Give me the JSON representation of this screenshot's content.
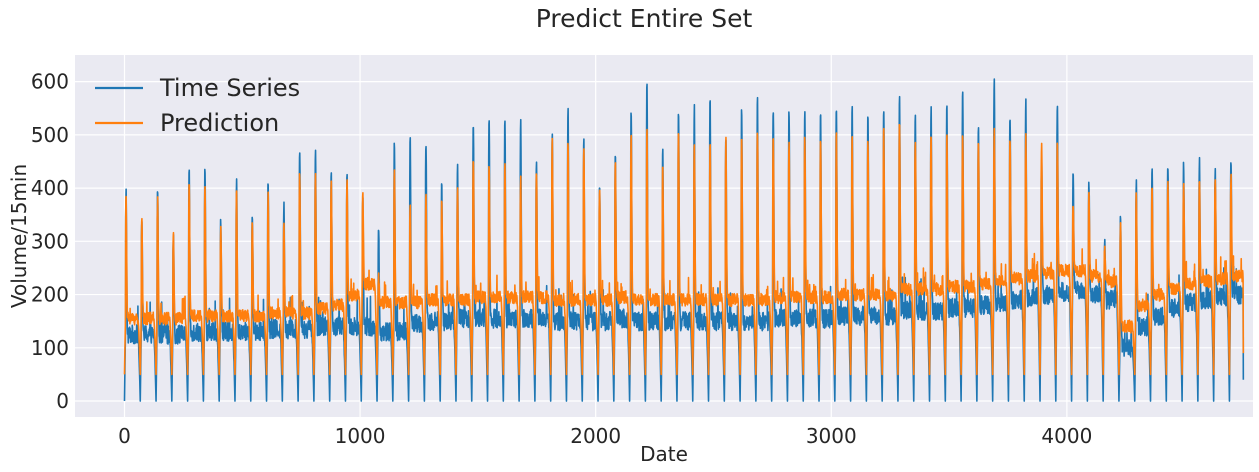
{
  "chart_data": {
    "type": "line",
    "title": "Predict Entire Set",
    "xlabel": "Date",
    "ylabel": "Volume/15min",
    "xlim": [
      -210,
      4790
    ],
    "ylim": [
      -30,
      650
    ],
    "xticks": [
      0,
      1000,
      2000,
      3000,
      4000
    ],
    "yticks": [
      0,
      100,
      200,
      300,
      400,
      500,
      600
    ],
    "grid": true,
    "legend_position": "top-left",
    "n_points": 4750,
    "cycle_length": 67,
    "colors": {
      "background": "#eaeaf2",
      "grid": "#ffffff",
      "text": "#262626"
    },
    "series": [
      {
        "name": "Time Series",
        "color": "#1f77b4",
        "peaks": [
          405,
          350,
          410,
          322,
          445,
          445,
          345,
          428,
          362,
          430,
          375,
          495,
          492,
          445,
          440,
          380,
          335,
          500,
          504,
          505,
          415,
          450,
          545,
          550,
          540,
          540,
          460,
          520,
          572,
          500,
          420,
          480,
          558,
          612,
          480,
          560,
          565,
          580,
          510,
          565,
          578,
          570,
          565,
          570,
          550,
          572,
          565,
          555,
          570,
          598,
          565,
          560,
          565,
          600,
          520,
          620,
          555,
          578,
          465,
          575,
          430,
          415,
          310,
          360,
          425,
          450,
          455,
          455,
          460,
          448,
          462,
          540,
          550,
          520,
          540,
          475,
          462
        ],
        "baselines": [
          125,
          125,
          125,
          125,
          130,
          130,
          130,
          130,
          130,
          135,
          135,
          135,
          140,
          140,
          140,
          140,
          130,
          130,
          145,
          150,
          150,
          155,
          155,
          155,
          155,
          155,
          155,
          150,
          150,
          150,
          150,
          155,
          150,
          150,
          150,
          150,
          150,
          150,
          150,
          150,
          150,
          155,
          155,
          155,
          155,
          160,
          160,
          160,
          160,
          170,
          170,
          170,
          175,
          175,
          180,
          185,
          190,
          195,
          200,
          205,
          210,
          200,
          190,
          100,
          140,
          160,
          175,
          185,
          190,
          195,
          200,
          205,
          210,
          215,
          220,
          225,
          225
        ],
        "troughs": [
          0,
          0,
          0,
          0,
          0,
          0,
          0,
          0,
          0,
          0,
          0,
          0,
          0,
          0,
          0,
          0,
          0,
          0,
          0,
          0,
          0,
          0,
          0,
          0,
          0,
          0,
          0,
          0,
          0,
          0,
          0,
          0,
          0,
          0,
          0,
          0,
          0,
          0,
          0,
          0,
          0,
          0,
          0,
          0,
          0,
          0,
          0,
          0,
          0,
          0,
          0,
          0,
          0,
          0,
          0,
          0,
          0,
          0,
          0,
          0,
          0,
          0,
          0,
          0,
          0,
          0,
          0,
          0,
          0,
          0,
          0,
          0,
          0,
          0,
          0,
          0,
          0
        ],
        "noise": 18,
        "end_value": 40
      },
      {
        "name": "Prediction",
        "color": "#ff7f0e",
        "peaks": [
          392,
          345,
          388,
          320,
          420,
          410,
          330,
          400,
          340,
          395,
          345,
          440,
          440,
          425,
          420,
          400,
          240,
          445,
          380,
          390,
          380,
          405,
          470,
          450,
          450,
          430,
          440,
          500,
          500,
          490,
          410,
          455,
          520,
          520,
          450,
          520,
          500,
          500,
          505,
          510,
          520,
          515,
          500,
          510,
          505,
          510,
          505,
          500,
          520,
          535,
          505,
          510,
          505,
          515,
          500,
          520,
          505,
          510,
          490,
          500,
          375,
          395,
          290,
          340,
          400,
          410,
          420,
          420,
          420,
          430,
          430,
          460,
          480,
          520,
          465,
          470,
          450
        ],
        "baselines": [
          155,
          155,
          155,
          155,
          160,
          160,
          160,
          160,
          160,
          165,
          165,
          165,
          175,
          180,
          200,
          220,
          185,
          185,
          185,
          190,
          190,
          190,
          195,
          195,
          195,
          195,
          195,
          190,
          190,
          190,
          190,
          195,
          190,
          190,
          190,
          190,
          190,
          190,
          190,
          190,
          190,
          195,
          195,
          195,
          195,
          200,
          200,
          200,
          200,
          210,
          210,
          210,
          215,
          215,
          220,
          225,
          230,
          235,
          240,
          245,
          245,
          235,
          225,
          140,
          180,
          200,
          210,
          220,
          225,
          230,
          235,
          240,
          245,
          245,
          250,
          250,
          250
        ],
        "troughs": [
          50,
          50,
          50,
          50,
          50,
          50,
          50,
          50,
          50,
          50,
          50,
          50,
          50,
          50,
          50,
          50,
          50,
          50,
          50,
          50,
          50,
          50,
          50,
          50,
          50,
          50,
          50,
          50,
          50,
          50,
          50,
          50,
          50,
          50,
          50,
          50,
          50,
          50,
          50,
          50,
          50,
          50,
          50,
          50,
          50,
          50,
          50,
          50,
          50,
          50,
          50,
          50,
          50,
          50,
          50,
          50,
          50,
          50,
          50,
          50,
          50,
          50,
          50,
          50,
          50,
          50,
          50,
          50,
          50,
          50,
          50,
          50,
          50,
          50,
          50,
          50,
          50
        ],
        "noise": 12,
        "end_value": 90
      }
    ]
  }
}
